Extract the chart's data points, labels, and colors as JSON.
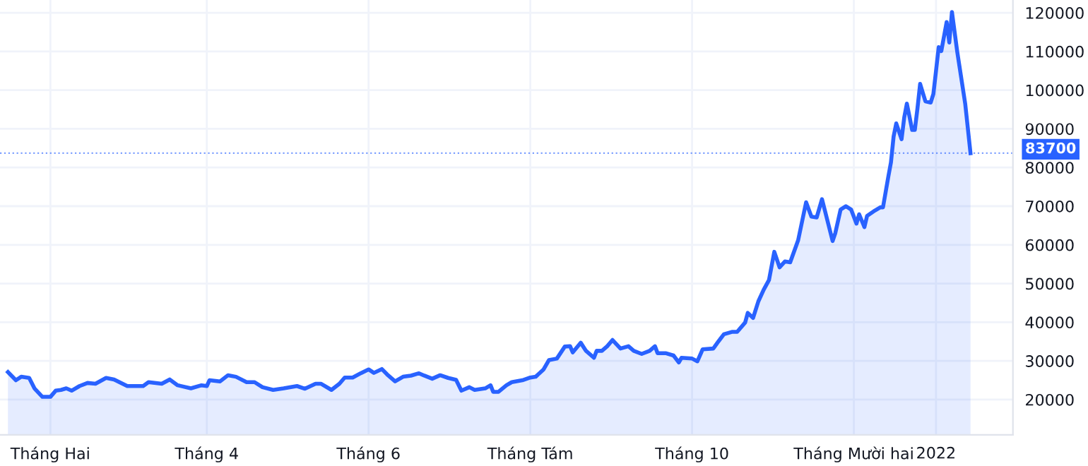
{
  "chart_data": {
    "type": "area",
    "x": [
      "2021-01-16",
      "2021-01-19",
      "2021-01-21",
      "2021-01-24",
      "2021-01-26",
      "2021-01-29",
      "2021-02-01",
      "2021-02-03",
      "2021-02-05",
      "2021-02-07",
      "2021-02-09",
      "2021-02-12",
      "2021-02-15",
      "2021-02-18",
      "2021-02-22",
      "2021-02-25",
      "2021-03-02",
      "2021-03-08",
      "2021-03-10",
      "2021-03-15",
      "2021-03-18",
      "2021-03-21",
      "2021-03-26",
      "2021-03-30",
      "2021-04-01",
      "2021-04-02",
      "2021-04-06",
      "2021-04-09",
      "2021-04-12",
      "2021-04-16",
      "2021-04-19",
      "2021-04-22",
      "2021-04-26",
      "2021-04-30",
      "2021-05-05",
      "2021-05-08",
      "2021-05-12",
      "2021-05-14",
      "2021-05-18",
      "2021-05-21",
      "2021-05-23",
      "2021-05-26",
      "2021-05-29",
      "2021-06-01",
      "2021-06-03",
      "2021-06-06",
      "2021-06-08",
      "2021-06-11",
      "2021-06-14",
      "2021-06-17",
      "2021-06-20",
      "2021-06-22",
      "2021-06-25",
      "2021-06-28",
      "2021-07-01",
      "2021-07-04",
      "2021-07-06",
      "2021-07-09",
      "2021-07-11",
      "2021-07-15",
      "2021-07-17",
      "2021-07-18",
      "2021-07-20",
      "2021-07-23",
      "2021-07-25",
      "2021-07-29",
      "2021-08-01",
      "2021-08-03",
      "2021-08-06",
      "2021-08-08",
      "2021-08-11",
      "2021-08-14",
      "2021-08-16",
      "2021-08-17",
      "2021-08-20",
      "2021-08-22",
      "2021-08-25",
      "2021-08-26",
      "2021-08-28",
      "2021-08-30",
      "2021-09-01",
      "2021-09-04",
      "2021-09-07",
      "2021-09-09",
      "2021-09-12",
      "2021-09-15",
      "2021-09-17",
      "2021-09-18",
      "2021-09-21",
      "2021-09-24",
      "2021-09-26",
      "2021-09-27",
      "2021-10-01",
      "2021-10-03",
      "2021-10-05",
      "2021-10-09",
      "2021-10-11",
      "2021-10-13",
      "2021-10-16",
      "2021-10-18",
      "2021-10-21",
      "2021-10-22",
      "2021-10-24",
      "2021-10-26",
      "2021-10-28",
      "2021-10-30",
      "2021-11-01",
      "2021-11-03",
      "2021-11-05",
      "2021-11-07",
      "2021-11-10",
      "2021-11-13",
      "2021-11-15",
      "2021-11-17",
      "2021-11-19",
      "2021-11-20",
      "2021-11-23",
      "2021-11-24",
      "2021-11-26",
      "2021-11-28",
      "2021-11-30",
      "2021-12-02",
      "2021-12-03",
      "2021-12-05",
      "2021-12-06",
      "2021-12-09",
      "2021-12-11",
      "2021-12-12",
      "2021-12-14",
      "2021-12-15",
      "2021-12-16",
      "2021-12-17",
      "2021-12-19",
      "2021-12-20",
      "2021-12-21",
      "2021-12-23",
      "2021-12-24",
      "2021-12-25",
      "2021-12-26",
      "2021-12-28",
      "2021-12-30",
      "2021-12-31",
      "2022-01-01",
      "2022-01-02",
      "2022-01-03",
      "2022-01-05",
      "2022-01-06",
      "2022-01-07",
      "2022-01-09",
      "2022-01-12",
      "2022-01-14"
    ],
    "series": [
      {
        "color": "#2962ff",
        "values": [
          27100,
          25000,
          25900,
          25600,
          22900,
          20700,
          20700,
          22300,
          22500,
          22900,
          22300,
          23500,
          24300,
          24100,
          25600,
          25200,
          23500,
          23500,
          24500,
          24100,
          25200,
          23700,
          22900,
          23700,
          23500,
          25000,
          24700,
          26300,
          25900,
          24500,
          24500,
          23200,
          22500,
          22900,
          23500,
          22800,
          24100,
          24100,
          22500,
          24100,
          25700,
          25700,
          26800,
          27800,
          26900,
          27900,
          26500,
          24700,
          25900,
          26200,
          26800,
          26200,
          25400,
          26300,
          25600,
          25100,
          22300,
          23200,
          22500,
          22900,
          23700,
          22000,
          22000,
          23700,
          24500,
          25000,
          25700,
          25900,
          27800,
          30200,
          30600,
          33700,
          33800,
          32200,
          34700,
          32600,
          30800,
          32600,
          32600,
          33800,
          35400,
          33200,
          33800,
          32600,
          31800,
          32600,
          33800,
          32000,
          32000,
          31400,
          29600,
          30800,
          30600,
          29900,
          33000,
          33200,
          35100,
          36900,
          37500,
          37500,
          39900,
          42400,
          41100,
          45400,
          48400,
          50900,
          58200,
          54200,
          55700,
          55500,
          61200,
          71000,
          67300,
          67100,
          71800,
          69100,
          61000,
          63000,
          69100,
          70000,
          69100,
          65500,
          67900,
          64600,
          67500,
          68900,
          69700,
          69700,
          77600,
          81300,
          88000,
          91400,
          87300,
          92900,
          96500,
          89700,
          89700,
          95300,
          101600,
          97100,
          96800,
          99000,
          105000,
          111100,
          110100,
          117600,
          112300,
          120200,
          109900,
          96500,
          83700
        ]
      }
    ],
    "xlim": [
      "2021-01-13",
      "2022-01-30"
    ],
    "xticks": [
      {
        "value": "2021-02-01",
        "label": "Tháng Hai"
      },
      {
        "value": "2021-04-01",
        "label": "Tháng 4"
      },
      {
        "value": "2021-06-01",
        "label": "Tháng 6"
      },
      {
        "value": "2021-08-01",
        "label": "Tháng Tám"
      },
      {
        "value": "2021-10-01",
        "label": "Tháng 10"
      },
      {
        "value": "2021-12-01",
        "label": "Tháng Mười hai"
      },
      {
        "value": "2022-01-01",
        "label": "2022"
      }
    ],
    "ylim": [
      10900,
      123300
    ],
    "yticks": [
      20000,
      30000,
      40000,
      50000,
      60000,
      70000,
      80000,
      90000,
      100000,
      110000,
      120000
    ],
    "ref_lines": [
      {
        "axis": "y",
        "value": 83700,
        "label": "83700",
        "color": "#2962ff",
        "line_style": "dotted"
      }
    ],
    "grid": true,
    "marker": "none",
    "line_style": "solid"
  }
}
